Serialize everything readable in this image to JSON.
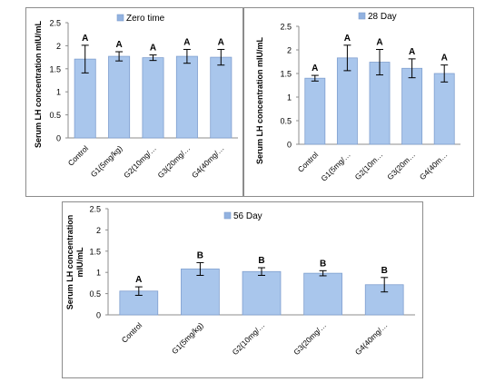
{
  "chart_data": [
    {
      "type": "bar",
      "series": [
        {
          "name": "Zero time",
          "values": [
            1.71,
            1.77,
            1.74,
            1.77,
            1.75
          ],
          "errors": [
            0.3,
            0.1,
            0.06,
            0.15,
            0.17
          ]
        }
      ],
      "categories": [
        "Control",
        "G1(5mg/kg)",
        "G2(10mg/…",
        "G3(20mg/…",
        "G4(40mg/…"
      ],
      "letters": [
        "A",
        "A",
        "A",
        "A",
        "A"
      ],
      "ylabel": "Serum LH concentration mIU/mL",
      "ylim": [
        0,
        2.5
      ],
      "yticks": [
        "0",
        "0.5",
        "1",
        "1.5",
        "2",
        "2.5"
      ],
      "legend_position": "top-right",
      "grid": false
    },
    {
      "type": "bar",
      "series": [
        {
          "name": "28 Day",
          "values": [
            1.4,
            1.83,
            1.74,
            1.61,
            1.5
          ],
          "errors": [
            0.06,
            0.27,
            0.27,
            0.2,
            0.18
          ]
        }
      ],
      "categories": [
        "Control",
        "G1(5mg/…",
        "G2(10m…",
        "G3(20m…",
        "G4(40m…"
      ],
      "letters": [
        "A",
        "A",
        "A",
        "A",
        "A"
      ],
      "ylabel": "Serum LH concentration mIU/mL",
      "ylim": [
        0,
        2.5
      ],
      "yticks": [
        "0",
        "0.5",
        "1",
        "1.5",
        "2",
        "2.5"
      ],
      "legend_position": "top-right",
      "grid": false
    },
    {
      "type": "bar",
      "series": [
        {
          "name": "56 Day",
          "values": [
            0.56,
            1.08,
            1.02,
            0.98,
            0.71
          ],
          "errors": [
            0.1,
            0.15,
            0.09,
            0.06,
            0.17
          ]
        }
      ],
      "categories": [
        "Control",
        "G1(5mg/kg)",
        "G2(10mg/…",
        "G3(20mg/…",
        "G4(40mg/…"
      ],
      "letters": [
        "A",
        "B",
        "B",
        "B",
        "B"
      ],
      "ylabel": "Serum LH concentration mIU/mL",
      "ylim": [
        0,
        2.5
      ],
      "yticks": [
        "0",
        "0.5",
        "1",
        "1.5",
        "2",
        "2.5"
      ],
      "legend_position": "top",
      "grid": false
    }
  ],
  "colors": {
    "bar_fill": "#a9c6ec",
    "bar_stroke": "#7f9fcf",
    "legend_swatch": "#92b2e0",
    "text": "#000000",
    "axis": "#8c8c8c"
  }
}
